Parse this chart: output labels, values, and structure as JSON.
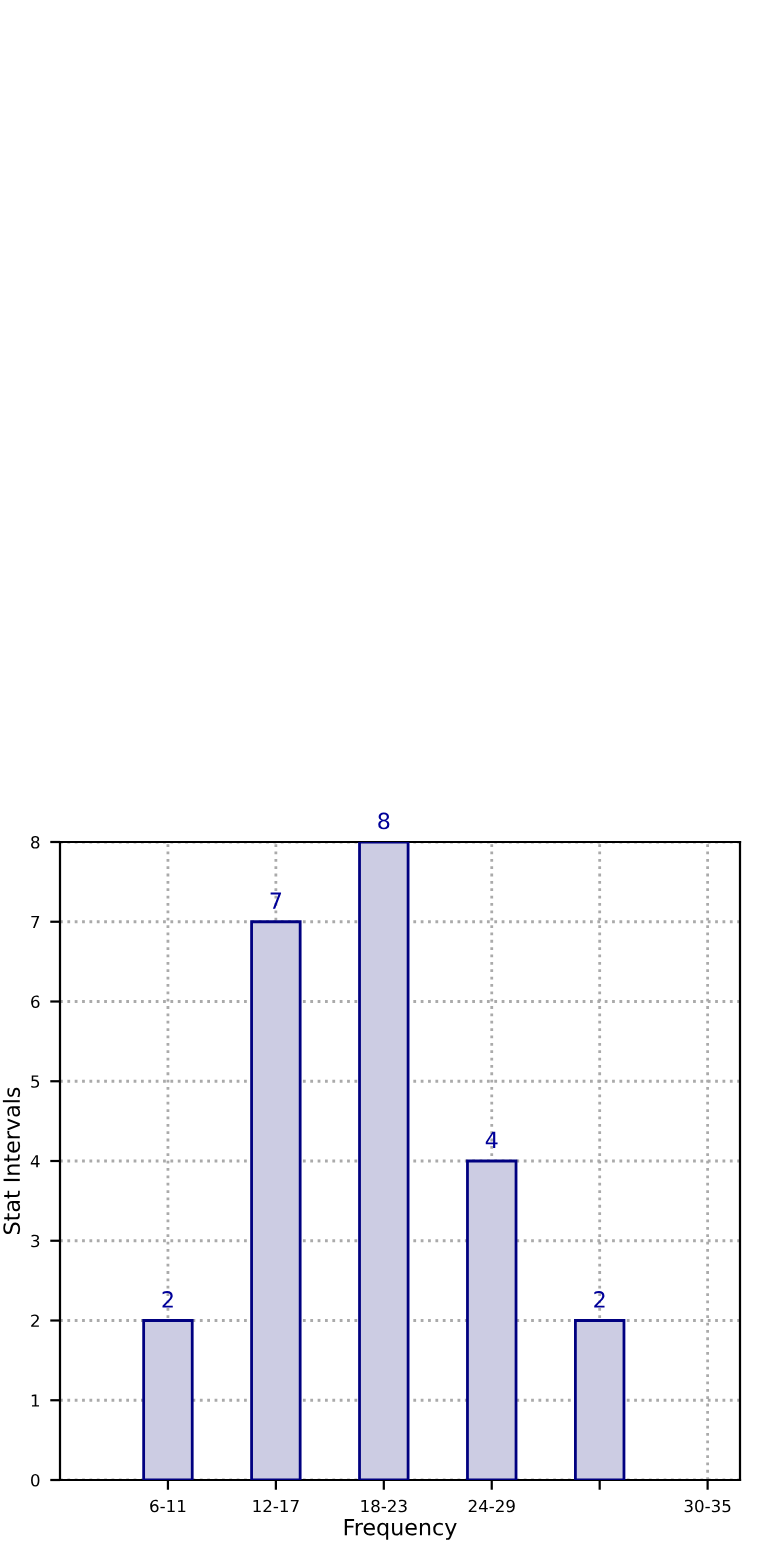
{
  "chart_data": {
    "type": "bar",
    "xlabel": "Frequency",
    "ylabel": "Stat Intervals",
    "categories": [
      "6-11",
      "12-17",
      "18-23",
      "24-29",
      null,
      "30-35"
    ],
    "values": [
      2,
      7,
      8,
      4,
      2,
      null
    ],
    "color": "#cccce3",
    "ylim": [
      0,
      8
    ],
    "yticks": [
      0,
      1,
      2,
      3,
      4,
      5,
      6,
      7,
      8
    ],
    "grid": true,
    "data_labels": true
  }
}
